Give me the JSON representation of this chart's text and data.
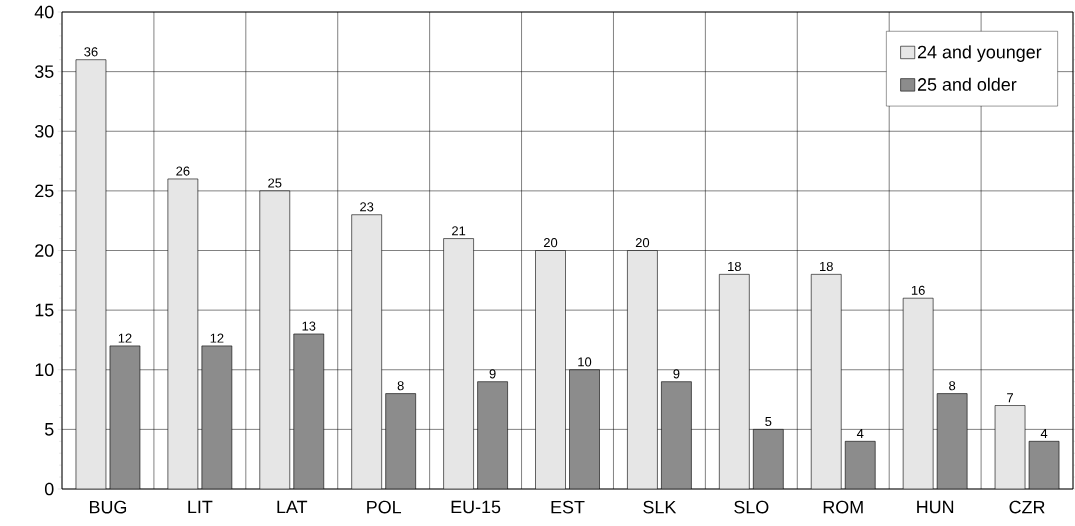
{
  "chart_data": {
    "type": "bar",
    "categories": [
      "BUG",
      "LIT",
      "LAT",
      "POL",
      "EU-15",
      "EST",
      "SLK",
      "SLO",
      "ROM",
      "HUN",
      "CZR"
    ],
    "series": [
      {
        "name": "24 and younger",
        "color": "#e6e6e6",
        "values": [
          36,
          26,
          25,
          23,
          21,
          20,
          20,
          18,
          18,
          16,
          7
        ]
      },
      {
        "name": "25 and older",
        "color": "#8c8c8c",
        "values": [
          12,
          12,
          13,
          8,
          9,
          10,
          9,
          5,
          4,
          8,
          4
        ]
      }
    ],
    "ylim": [
      0,
      40
    ],
    "yticks": [
      0,
      5,
      10,
      15,
      20,
      25,
      30,
      35,
      40
    ],
    "grid": true,
    "legend": "top right",
    "data_labels": true
  }
}
